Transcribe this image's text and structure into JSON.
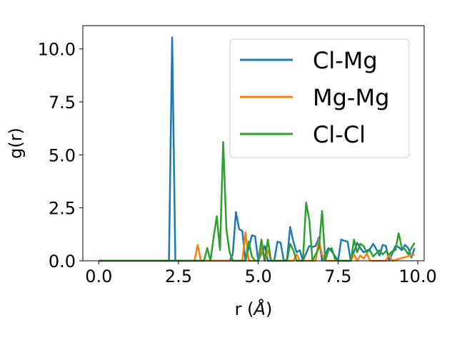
{
  "chart_data": {
    "type": "line",
    "xlabel": "r (",
    "xlabel_unit": "Å",
    "xlabel_close": ")",
    "ylabel": "g(r)",
    "xlim": [
      -0.5,
      10.2
    ],
    "ylim": [
      0,
      11.1
    ],
    "xticks": [
      0.0,
      2.5,
      5.0,
      7.5,
      10.0
    ],
    "xtick_labels": [
      "0.0",
      "2.5",
      "5.0",
      "7.5",
      "10.0"
    ],
    "yticks": [
      0.0,
      2.5,
      5.0,
      7.5,
      10.0
    ],
    "ytick_labels": [
      "0.0",
      "2.5",
      "5.0",
      "7.5",
      "10.0"
    ],
    "grid": false,
    "legend_position": "top-right",
    "series": [
      {
        "name": "Cl-Mg",
        "color": "#1f77b4",
        "points": [
          [
            0.0,
            0
          ],
          [
            2.2,
            0
          ],
          [
            2.3,
            10.55
          ],
          [
            2.4,
            0
          ],
          [
            4.1,
            0
          ],
          [
            4.2,
            0.3
          ],
          [
            4.3,
            2.3
          ],
          [
            4.4,
            1.5
          ],
          [
            4.5,
            1.4
          ],
          [
            4.6,
            0
          ],
          [
            4.8,
            1.2
          ],
          [
            4.9,
            1.15
          ],
          [
            5.0,
            0
          ],
          [
            5.2,
            0.7
          ],
          [
            5.3,
            0
          ],
          [
            5.5,
            0
          ],
          [
            5.6,
            0.9
          ],
          [
            5.7,
            0.85
          ],
          [
            5.8,
            0
          ],
          [
            5.9,
            0.05
          ],
          [
            6.0,
            1.6
          ],
          [
            6.1,
            0.9
          ],
          [
            6.2,
            0.4
          ],
          [
            6.3,
            0.5
          ],
          [
            6.4,
            0
          ],
          [
            6.6,
            0.7
          ],
          [
            6.7,
            0.65
          ],
          [
            6.8,
            0.7
          ],
          [
            6.9,
            1.1
          ],
          [
            7.0,
            0
          ],
          [
            7.2,
            0.6
          ],
          [
            7.3,
            0.45
          ],
          [
            7.5,
            0
          ],
          [
            7.6,
            1.0
          ],
          [
            7.7,
            0.95
          ],
          [
            7.8,
            0.9
          ],
          [
            7.9,
            0
          ],
          [
            8.1,
            0.85
          ],
          [
            8.2,
            0.6
          ],
          [
            8.3,
            0.4
          ],
          [
            8.5,
            0.55
          ],
          [
            8.6,
            0.8
          ],
          [
            8.7,
            0.55
          ],
          [
            8.8,
            0.25
          ],
          [
            8.9,
            0.75
          ],
          [
            9.0,
            0.7
          ],
          [
            9.1,
            0
          ],
          [
            9.3,
            0.7
          ],
          [
            9.4,
            0.65
          ],
          [
            9.5,
            0.5
          ],
          [
            9.6,
            0.75
          ],
          [
            9.7,
            0.6
          ],
          [
            9.8,
            0.15
          ],
          [
            9.9,
            0.6
          ]
        ]
      },
      {
        "name": "Mg-Mg",
        "color": "#ff7f0e",
        "points": [
          [
            0.0,
            0
          ],
          [
            3.0,
            0
          ],
          [
            3.1,
            0.75
          ],
          [
            3.2,
            0
          ],
          [
            4.5,
            0
          ],
          [
            4.6,
            1.35
          ],
          [
            4.7,
            0
          ],
          [
            5.0,
            0
          ],
          [
            5.1,
            0.6
          ],
          [
            5.2,
            0
          ],
          [
            5.3,
            0.5
          ],
          [
            5.4,
            0
          ],
          [
            6.1,
            0
          ],
          [
            6.2,
            0.3
          ],
          [
            6.3,
            0
          ],
          [
            6.8,
            0
          ],
          [
            6.9,
            1.0
          ],
          [
            7.0,
            0.3
          ],
          [
            7.1,
            0
          ],
          [
            7.9,
            0
          ],
          [
            8.0,
            0.3
          ],
          [
            8.1,
            0
          ],
          [
            8.2,
            0.25
          ],
          [
            8.3,
            0.1
          ],
          [
            8.4,
            0.35
          ],
          [
            8.5,
            0
          ],
          [
            9.0,
            0
          ],
          [
            9.1,
            0.3
          ],
          [
            9.2,
            0
          ],
          [
            9.9,
            0.3
          ]
        ]
      },
      {
        "name": "Cl-Cl",
        "color": "#2ca02c",
        "points": [
          [
            0.0,
            0
          ],
          [
            3.3,
            0
          ],
          [
            3.4,
            0.6
          ],
          [
            3.5,
            0
          ],
          [
            3.6,
            1.1
          ],
          [
            3.7,
            2.1
          ],
          [
            3.8,
            0.5
          ],
          [
            3.9,
            5.6
          ],
          [
            4.0,
            1.5
          ],
          [
            4.1,
            0.4
          ],
          [
            4.2,
            0
          ],
          [
            4.6,
            0
          ],
          [
            4.7,
            0.9
          ],
          [
            4.8,
            0.2
          ],
          [
            4.9,
            0
          ],
          [
            5.0,
            0
          ],
          [
            5.1,
            1.0
          ],
          [
            5.2,
            0
          ],
          [
            5.3,
            1.0
          ],
          [
            5.4,
            0
          ],
          [
            5.9,
            0
          ],
          [
            6.0,
            0.8
          ],
          [
            6.1,
            0.5
          ],
          [
            6.2,
            0
          ],
          [
            6.4,
            0
          ],
          [
            6.5,
            2.75
          ],
          [
            6.6,
            1.9
          ],
          [
            6.7,
            0
          ],
          [
            6.8,
            0.3
          ],
          [
            6.9,
            0.6
          ],
          [
            7.0,
            2.35
          ],
          [
            7.1,
            0
          ],
          [
            7.2,
            0.5
          ],
          [
            7.3,
            0.6
          ],
          [
            7.4,
            0.1
          ],
          [
            7.5,
            0
          ],
          [
            7.9,
            0
          ],
          [
            8.0,
            1.0
          ],
          [
            8.1,
            0.4
          ],
          [
            8.2,
            0.8
          ],
          [
            8.3,
            0.7
          ],
          [
            8.4,
            0.4
          ],
          [
            8.5,
            0.5
          ],
          [
            8.6,
            0.2
          ],
          [
            8.8,
            0.5
          ],
          [
            8.9,
            0.3
          ],
          [
            9.0,
            0.45
          ],
          [
            9.1,
            0.3
          ],
          [
            9.2,
            0.45
          ],
          [
            9.3,
            0.5
          ],
          [
            9.4,
            1.3
          ],
          [
            9.5,
            0.6
          ],
          [
            9.6,
            0.55
          ],
          [
            9.7,
            0.3
          ],
          [
            9.8,
            0.6
          ],
          [
            9.9,
            0.85
          ]
        ]
      }
    ]
  }
}
